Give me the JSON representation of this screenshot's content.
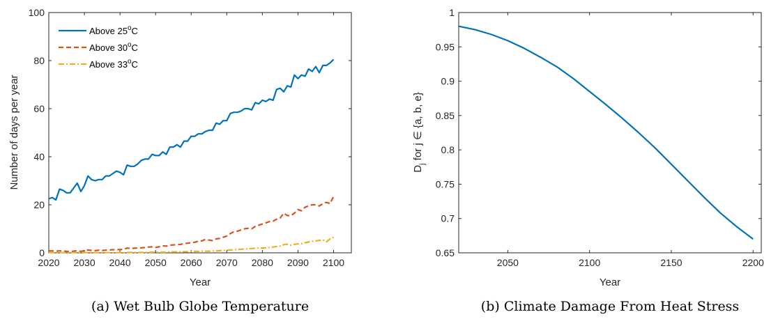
{
  "chart_data": [
    {
      "type": "line",
      "caption": "(a) Wet Bulb Globe Temperature",
      "xlabel": "Year",
      "ylabel": "Number of days per year",
      "xlim": [
        2020,
        2105
      ],
      "ylim": [
        0,
        100
      ],
      "xticks": [
        2020,
        2030,
        2040,
        2050,
        2060,
        2070,
        2080,
        2090,
        2100
      ],
      "yticks": [
        0,
        20,
        40,
        60,
        80,
        100
      ],
      "legend_position": "top-left",
      "grid": false,
      "x": [
        2020,
        2021,
        2022,
        2023,
        2024,
        2025,
        2026,
        2027,
        2028,
        2029,
        2030,
        2031,
        2032,
        2033,
        2034,
        2035,
        2036,
        2037,
        2038,
        2039,
        2040,
        2041,
        2042,
        2043,
        2044,
        2045,
        2046,
        2047,
        2048,
        2049,
        2050,
        2051,
        2052,
        2053,
        2054,
        2055,
        2056,
        2057,
        2058,
        2059,
        2060,
        2061,
        2062,
        2063,
        2064,
        2065,
        2066,
        2067,
        2068,
        2069,
        2070,
        2071,
        2072,
        2073,
        2074,
        2075,
        2076,
        2077,
        2078,
        2079,
        2080,
        2081,
        2082,
        2083,
        2084,
        2085,
        2086,
        2087,
        2088,
        2089,
        2090,
        2091,
        2092,
        2093,
        2094,
        2095,
        2096,
        2097,
        2098,
        2099,
        2100
      ],
      "series": [
        {
          "name": "Above 25°C",
          "color": "#0072BD",
          "style": "solid",
          "values": [
            22.5,
            23.0,
            22.0,
            26.5,
            26.0,
            25.0,
            25.0,
            27.0,
            29.0,
            25.5,
            28.0,
            32.0,
            30.5,
            30.0,
            30.5,
            30.5,
            32.0,
            32.0,
            33.0,
            34.0,
            33.5,
            32.5,
            36.5,
            36.0,
            36.0,
            37.0,
            38.5,
            39.0,
            39.0,
            41.0,
            40.5,
            40.5,
            42.0,
            41.0,
            44.0,
            44.0,
            45.0,
            44.0,
            46.5,
            46.5,
            48.5,
            48.5,
            49.5,
            49.5,
            50.5,
            51.0,
            51.0,
            54.0,
            53.5,
            55.0,
            55.0,
            58.0,
            58.5,
            58.5,
            59.0,
            60.0,
            60.0,
            59.5,
            62.5,
            62.0,
            63.5,
            63.0,
            64.0,
            63.5,
            68.0,
            68.5,
            67.0,
            69.5,
            69.0,
            74.0,
            72.5,
            74.0,
            73.5,
            76.5,
            75.5,
            77.5,
            75.0,
            78.0,
            78.0,
            79.0,
            80.5
          ]
        },
        {
          "name": "Above 30°C",
          "color": "#D95319",
          "style": "dashed",
          "values": [
            0.8,
            0.8,
            0.7,
            0.8,
            0.8,
            0.6,
            0.5,
            0.7,
            0.9,
            0.6,
            0.9,
            1.2,
            1.0,
            0.9,
            1.1,
            1.0,
            1.1,
            1.2,
            1.3,
            1.3,
            1.4,
            1.4,
            2.0,
            1.8,
            1.9,
            2.0,
            2.1,
            2.2,
            2.4,
            2.5,
            2.3,
            2.5,
            2.9,
            2.8,
            3.2,
            3.3,
            3.4,
            3.5,
            3.9,
            4.0,
            4.2,
            4.4,
            4.8,
            5.0,
            5.6,
            5.3,
            5.1,
            5.8,
            6.0,
            6.5,
            7.0,
            8.0,
            8.8,
            9.0,
            9.5,
            10.0,
            10.2,
            10.0,
            11.0,
            11.5,
            12.0,
            12.5,
            13.0,
            13.2,
            14.0,
            14.5,
            16.5,
            15.5,
            15.5,
            16.5,
            18.0,
            17.5,
            19.0,
            19.5,
            20.0,
            20.0,
            19.5,
            20.5,
            21.0,
            20.5,
            23.5
          ]
        },
        {
          "name": "Above 33°C",
          "color": "#EDB120",
          "style": "dashdot",
          "values": [
            0.1,
            0.1,
            0.1,
            0.1,
            0.1,
            0.1,
            0.1,
            0.1,
            0.1,
            0.1,
            0.1,
            0.1,
            0.1,
            0.1,
            0.1,
            0.1,
            0.1,
            0.1,
            0.1,
            0.1,
            0.1,
            0.1,
            0.2,
            0.2,
            0.2,
            0.2,
            0.2,
            0.2,
            0.2,
            0.3,
            0.3,
            0.3,
            0.3,
            0.3,
            0.4,
            0.4,
            0.4,
            0.4,
            0.5,
            0.5,
            0.6,
            0.6,
            0.6,
            0.7,
            0.7,
            0.7,
            0.8,
            0.8,
            0.9,
            1.0,
            1.1,
            1.2,
            1.3,
            1.4,
            1.5,
            1.6,
            1.7,
            1.8,
            1.9,
            2.0,
            2.0,
            2.1,
            2.2,
            2.4,
            2.6,
            2.8,
            3.4,
            3.6,
            3.2,
            3.5,
            3.7,
            3.8,
            4.2,
            4.5,
            4.8,
            5.0,
            5.2,
            5.4,
            4.6,
            5.8,
            6.5
          ]
        }
      ]
    },
    {
      "type": "line",
      "caption": "(b) Climate Damage From Heat Stress",
      "xlabel": "Year",
      "ylabel_parts": {
        "main": "D",
        "sub": "j",
        "rest": " for j ∈ {a, b, e}"
      },
      "xlim": [
        2020,
        2205
      ],
      "ylim": [
        0.65,
        1.0
      ],
      "xticks": [
        2050,
        2100,
        2150,
        2200
      ],
      "yticks": [
        0.65,
        0.7,
        0.75,
        0.8,
        0.85,
        0.9,
        0.95,
        1
      ],
      "ytick_labels": [
        "0.65",
        "0.7",
        "0.75",
        "0.8",
        "0.85",
        "0.9",
        "0.95",
        "1"
      ],
      "grid": false,
      "series": [
        {
          "color": "#0072BD",
          "style": "solid",
          "x": [
            2020,
            2030,
            2040,
            2050,
            2060,
            2070,
            2080,
            2090,
            2100,
            2110,
            2120,
            2130,
            2140,
            2150,
            2160,
            2170,
            2180,
            2190,
            2200
          ],
          "values": [
            0.98,
            0.975,
            0.968,
            0.959,
            0.948,
            0.935,
            0.921,
            0.904,
            0.885,
            0.866,
            0.846,
            0.825,
            0.803,
            0.779,
            0.755,
            0.731,
            0.708,
            0.688,
            0.67
          ]
        }
      ]
    }
  ]
}
